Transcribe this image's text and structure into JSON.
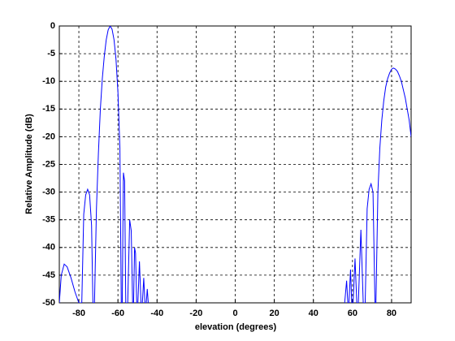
{
  "chart_data": {
    "type": "line",
    "xlabel": "elevation (degrees)",
    "ylabel": "Relative Amplitude (dB)",
    "xlim": [
      -90,
      90
    ],
    "ylim": [
      -50,
      0
    ],
    "xticks": [
      -80,
      -60,
      -40,
      -20,
      0,
      20,
      40,
      60,
      80
    ],
    "yticks": [
      0,
      -5,
      -10,
      -15,
      -20,
      -25,
      -30,
      -35,
      -40,
      -45,
      -50
    ],
    "grid": true,
    "series": [
      {
        "color": "#0000ff",
        "x": [
          -90,
          -89,
          -87.5,
          -86,
          -84,
          -82,
          -80,
          -78.5,
          -77.5,
          -76.5,
          -75.5,
          -74.5,
          -73.5,
          -72.8,
          -72,
          -71,
          -70,
          -69,
          -68,
          -67,
          -66,
          -65,
          -64,
          -63,
          -62,
          -61,
          -60,
          -59,
          -58.3,
          -57.8,
          -57.2,
          -56.6,
          -56,
          -55,
          -54,
          -53.2,
          -52.5,
          -52,
          -51.5,
          -51,
          -50.4,
          -49.8,
          -49,
          -48.2,
          -47.5,
          -46.8,
          -46.2,
          -45.5,
          -45,
          -44.5,
          -20,
          56,
          57,
          57.6,
          58.2,
          59,
          59.6,
          60.3,
          61.3,
          62.2,
          63,
          64.3,
          65.5,
          66.5,
          67.5,
          68.5,
          69.5,
          70.5,
          71.5,
          72,
          73,
          74,
          75,
          76,
          77,
          78,
          79,
          80,
          81,
          82,
          83,
          84,
          85,
          86,
          87,
          88,
          89,
          90
        ],
        "values": [
          -50,
          -45,
          -43,
          -43.5,
          -45.5,
          -48,
          -50,
          -50,
          -34,
          -30.5,
          -29.5,
          -30.5,
          -36,
          -50,
          -50,
          -33,
          -23,
          -15,
          -9.5,
          -5.5,
          -2.5,
          -0.7,
          0,
          -0.6,
          -2.5,
          -6,
          -12,
          -22,
          -50,
          -50,
          -26.5,
          -28,
          -50,
          -50,
          -35,
          -37,
          -50,
          -50,
          -40,
          -41,
          -50,
          -50,
          -42.5,
          -50,
          -50,
          -45.5,
          -50,
          -50,
          -47.5,
          -50,
          null,
          -50,
          -46,
          -50,
          -50,
          -44,
          -50,
          -50,
          -42,
          -50,
          -50,
          -36.8,
          -50,
          -50,
          -33,
          -29.5,
          -28.5,
          -30,
          -50,
          -50,
          -30,
          -22,
          -17,
          -13.5,
          -11,
          -9.5,
          -8.5,
          -7.8,
          -7.6,
          -7.8,
          -8.2,
          -9,
          -10,
          -11.5,
          -13,
          -15,
          -17,
          -20
        ]
      }
    ]
  }
}
